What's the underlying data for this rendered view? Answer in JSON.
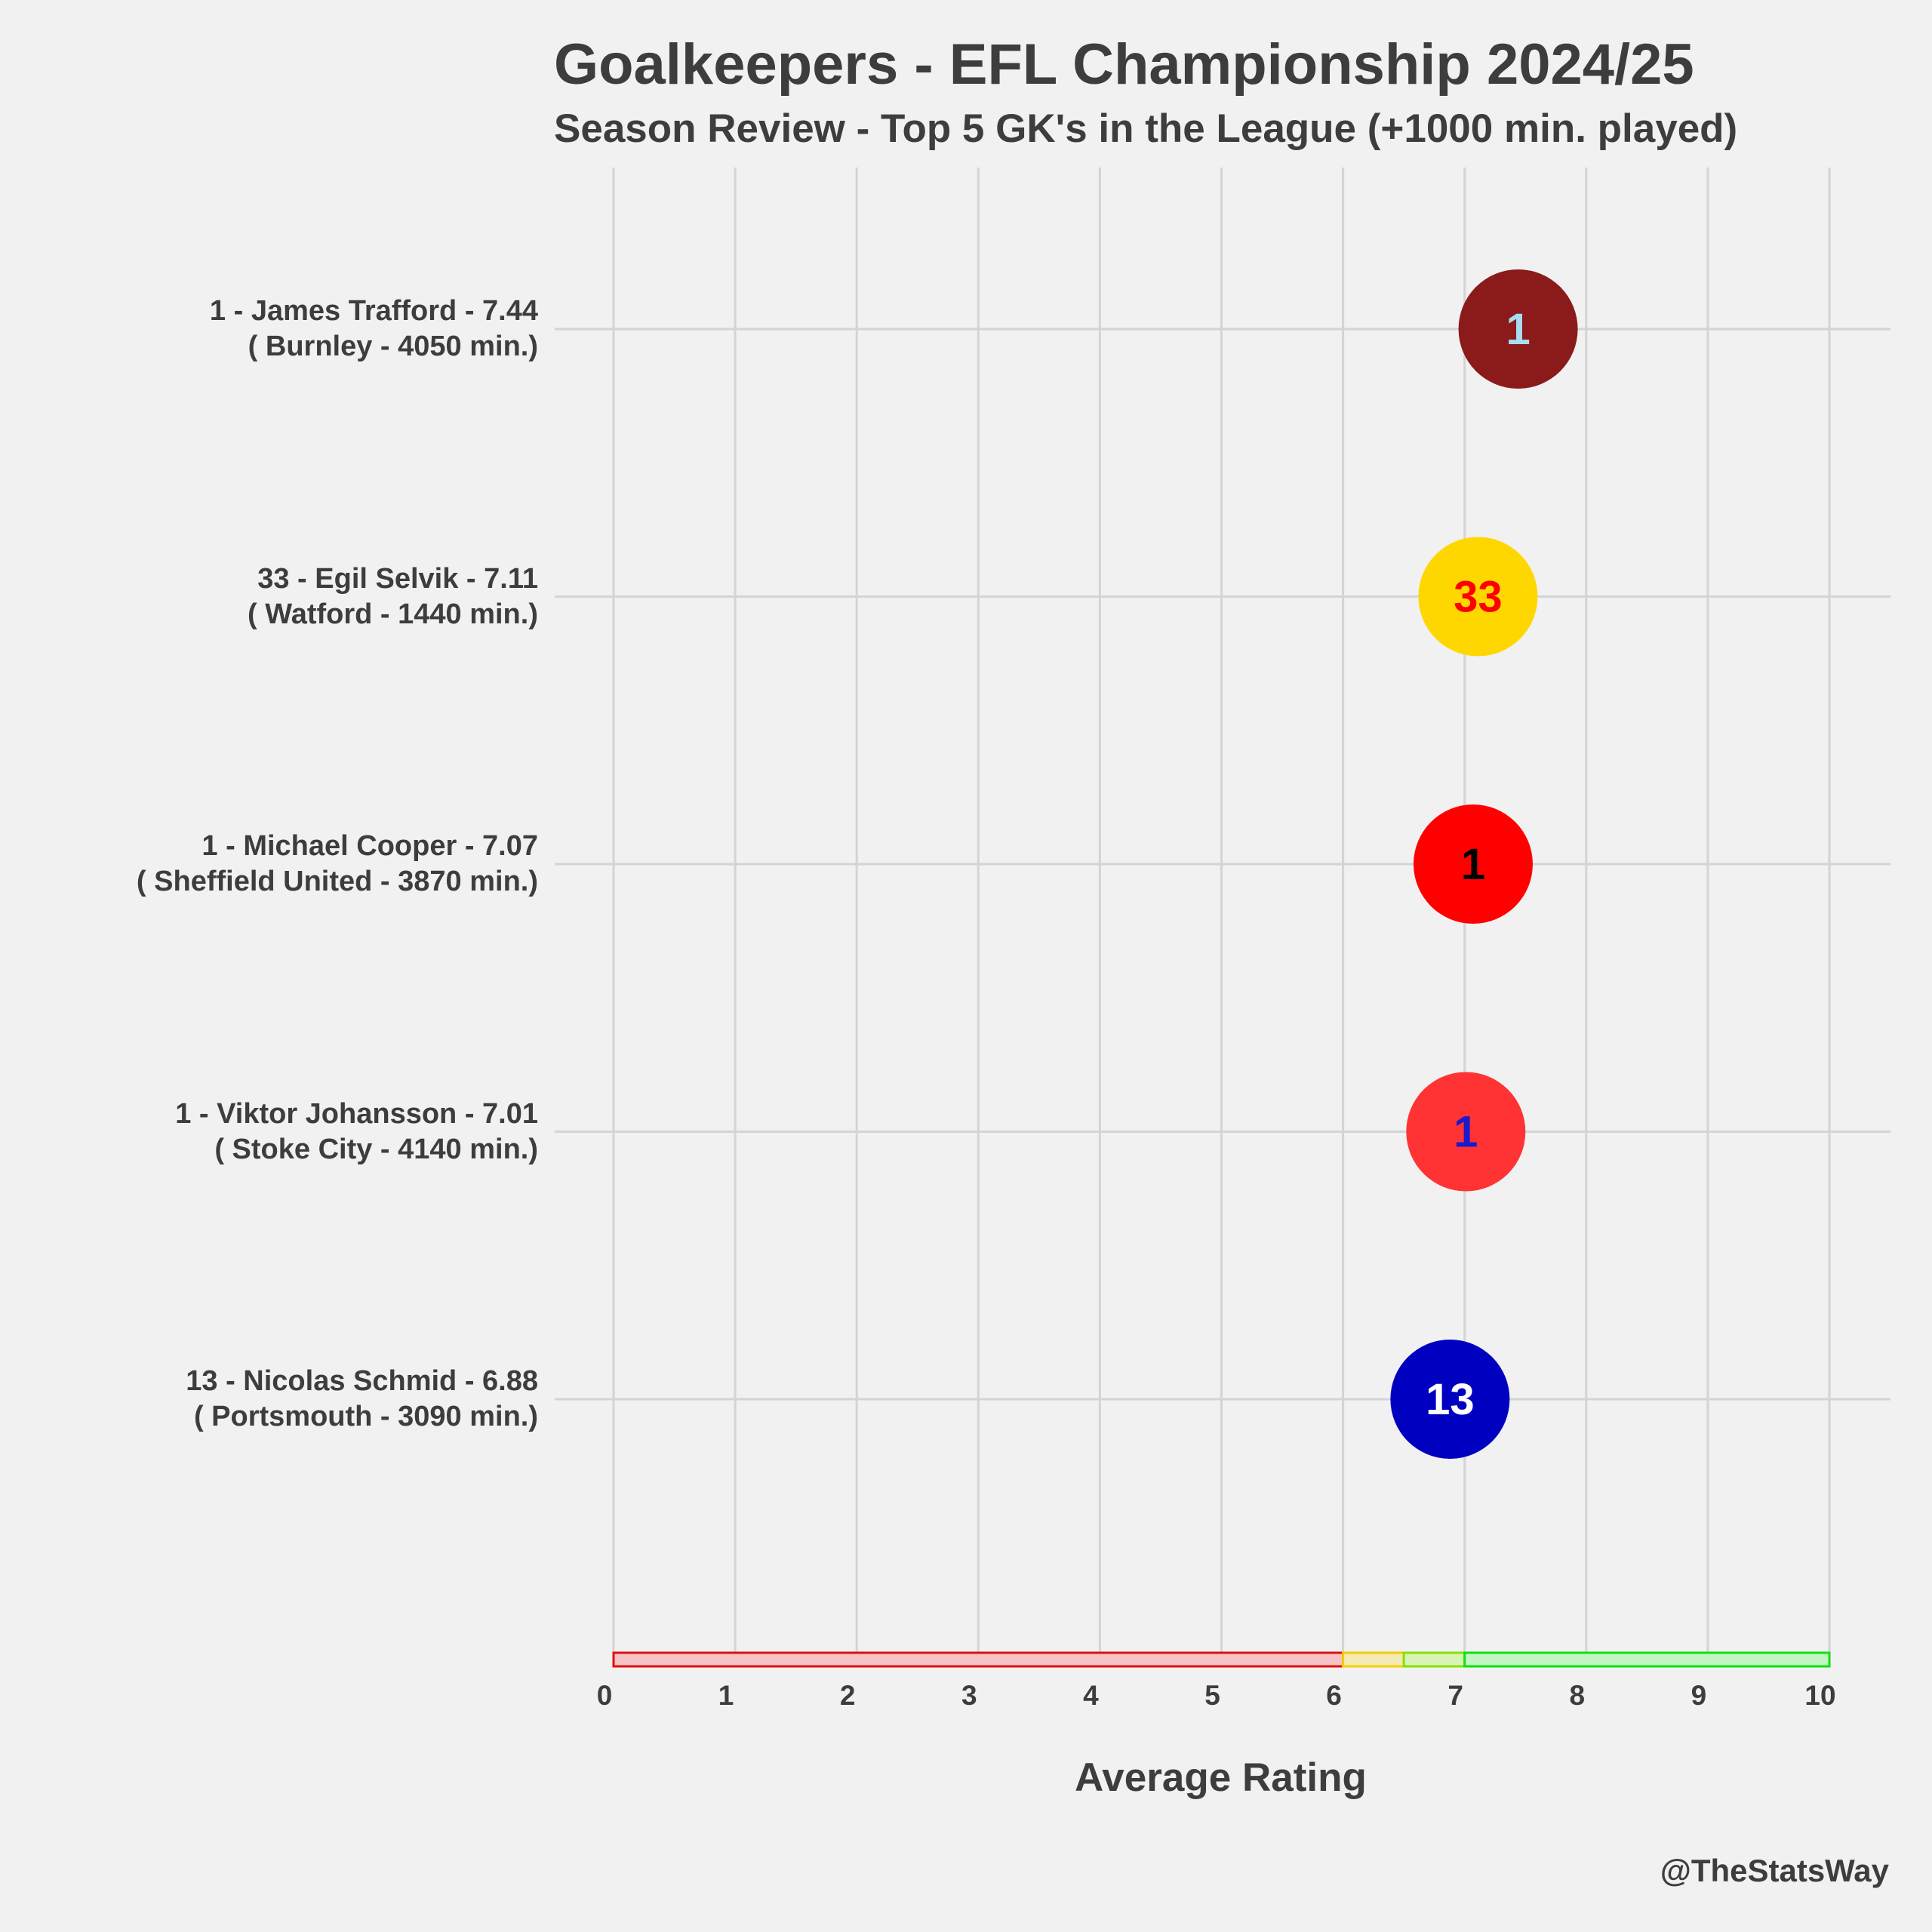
{
  "chart_data": {
    "type": "scatter",
    "title": "Goalkeepers - EFL Championship 2024/25",
    "subtitle": "Season Review - Top 5 GK's in the League (+1000 min. played)",
    "xlabel": "Average Rating",
    "xlim": [
      0,
      10
    ],
    "xticks": [
      "0",
      "1",
      "2",
      "3",
      "4",
      "5",
      "6",
      "7",
      "8",
      "9",
      "10"
    ],
    "grid": true,
    "players": [
      {
        "rank_label": "1 - James Trafford - 7.44",
        "detail_label": "( Burnley - 4050 min.)",
        "number": "1",
        "rating": 7.44,
        "circle_color": "#8b1a1a",
        "number_color": "#a8dcf0"
      },
      {
        "rank_label": "33 - Egil Selvik - 7.11",
        "detail_label": "( Watford - 1440 min.)",
        "number": "33",
        "rating": 7.11,
        "circle_color": "#ffd700",
        "number_color": "#ff0000"
      },
      {
        "rank_label": "1 - Michael Cooper - 7.07",
        "detail_label": "( Sheffield United - 3870 min.)",
        "number": "1",
        "rating": 7.07,
        "circle_color": "#ff0000",
        "number_color": "#000000"
      },
      {
        "rank_label": "1 - Viktor Johansson - 7.01",
        "detail_label": "( Stoke City - 4140 min.)",
        "number": "1",
        "rating": 7.01,
        "circle_color": "#ff3333",
        "number_color": "#1a1acc"
      },
      {
        "rank_label": "13 - Nicolas Schmid - 6.88",
        "detail_label": "( Portsmouth - 3090 min.)",
        "number": "13",
        "rating": 6.88,
        "circle_color": "#0000c0",
        "number_color": "#ffffff"
      }
    ],
    "rating_bands": [
      {
        "from": 0,
        "to": 6,
        "fill": "#f6c4c4",
        "stroke": "#e01010"
      },
      {
        "from": 6,
        "to": 6.5,
        "fill": "#f4eab4",
        "stroke": "#f0d000"
      },
      {
        "from": 6.5,
        "to": 7,
        "fill": "#d8f4b4",
        "stroke": "#88e000"
      },
      {
        "from": 7,
        "to": 10,
        "fill": "#c4f6c4",
        "stroke": "#10e010"
      }
    ]
  },
  "credit": "@TheStatsWay"
}
